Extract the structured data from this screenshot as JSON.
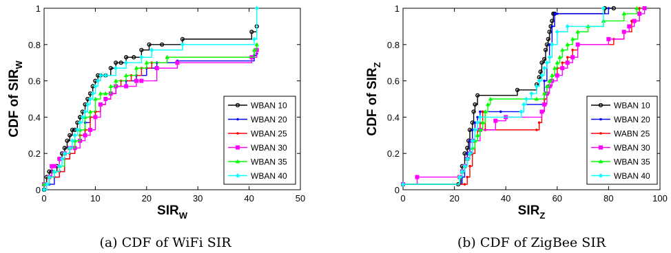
{
  "chart_data": [
    {
      "type": "line",
      "subplot_caption": "(a) CDF of WiFi SIR",
      "xlabel": "SIR",
      "xlabel_sub": "W",
      "ylabel": "CDF of SIR",
      "ylabel_sub": "W",
      "xlim": [
        0,
        50
      ],
      "ylim": [
        0,
        1
      ],
      "xticks": [
        "0",
        "10",
        "20",
        "30",
        "40",
        "50"
      ],
      "yticks": [
        "0",
        "0.2",
        "0.4",
        "0.6",
        "0.8",
        "1"
      ],
      "grid": false,
      "legend_position": "bottom-right",
      "series": [
        {
          "name": "WBAN 10",
          "color": "#000000",
          "marker": "circle",
          "x": [
            0,
            0.5,
            1,
            1.5,
            2.5,
            3,
            3.5,
            4,
            4.5,
            5,
            5.5,
            6,
            6.5,
            7,
            7.5,
            8,
            8.5,
            9,
            9.5,
            10,
            10.5,
            11,
            12,
            13,
            14,
            15,
            16,
            17.5,
            19,
            20.5,
            23,
            27,
            40.5,
            41.5
          ],
          "y": [
            0,
            0.07,
            0.1,
            0.1,
            0.13,
            0.17,
            0.2,
            0.23,
            0.27,
            0.3,
            0.33,
            0.33,
            0.37,
            0.4,
            0.43,
            0.47,
            0.5,
            0.53,
            0.57,
            0.6,
            0.63,
            0.63,
            0.63,
            0.67,
            0.7,
            0.7,
            0.73,
            0.73,
            0.77,
            0.8,
            0.8,
            0.83,
            0.87,
            0.9
          ]
        },
        {
          "name": "WBAN 20",
          "color": "#0000ff",
          "marker": "point",
          "x": [
            0,
            1,
            2,
            3,
            4,
            5,
            6,
            7,
            8,
            9,
            10,
            11,
            12,
            13,
            14,
            16,
            18,
            20,
            22,
            26,
            41,
            41.5
          ],
          "y": [
            0.03,
            0.03,
            0.07,
            0.1,
            0.17,
            0.2,
            0.27,
            0.3,
            0.37,
            0.4,
            0.43,
            0.47,
            0.5,
            0.53,
            0.57,
            0.6,
            0.63,
            0.67,
            0.7,
            0.71,
            0.74,
            0.75
          ]
        },
        {
          "name": "WBAN 25",
          "color": "#ff0000",
          "marker": "point",
          "x": [
            0,
            1,
            2,
            3,
            4,
            5,
            6,
            7,
            8,
            9,
            10,
            11,
            12,
            13,
            14,
            15,
            17,
            19,
            21,
            24,
            41,
            41.5
          ],
          "y": [
            0.03,
            0.07,
            0.07,
            0.1,
            0.17,
            0.2,
            0.27,
            0.3,
            0.33,
            0.4,
            0.43,
            0.47,
            0.5,
            0.53,
            0.57,
            0.6,
            0.63,
            0.67,
            0.7,
            0.73,
            0.77,
            0.8
          ]
        },
        {
          "name": "WBAN 30",
          "color": "#ff00ff",
          "marker": "square",
          "x": [
            0,
            1,
            1.5,
            2,
            3,
            4,
            5,
            6,
            7,
            8,
            9,
            10,
            11,
            12,
            13,
            14,
            16,
            18,
            19,
            22,
            26,
            40.5,
            41.5
          ],
          "y": [
            0.03,
            0.07,
            0.13,
            0.13,
            0.17,
            0.2,
            0.23,
            0.23,
            0.27,
            0.3,
            0.33,
            0.4,
            0.47,
            0.5,
            0.53,
            0.57,
            0.57,
            0.6,
            0.6,
            0.67,
            0.7,
            0.73,
            0.77
          ]
        },
        {
          "name": "WBAN 35",
          "color": "#00ff00",
          "marker": "triangle",
          "x": [
            0,
            1,
            2,
            3,
            4,
            5,
            6,
            7,
            8,
            9,
            10,
            11,
            12,
            13,
            14,
            16,
            18,
            20,
            24,
            41,
            41.5
          ],
          "y": [
            0.03,
            0.07,
            0.1,
            0.13,
            0.2,
            0.23,
            0.27,
            0.33,
            0.4,
            0.43,
            0.5,
            0.53,
            0.53,
            0.57,
            0.6,
            0.63,
            0.67,
            0.7,
            0.73,
            0.77,
            0.8
          ]
        },
        {
          "name": "WBAN 40",
          "color": "#00ffff",
          "marker": "diamond",
          "x": [
            0,
            0.5,
            1,
            2,
            3,
            3.5,
            4,
            5,
            5.5,
            6,
            6.5,
            7,
            7.5,
            8,
            8.5,
            9,
            9.5,
            10,
            10.5,
            11,
            12,
            14,
            16,
            19,
            21,
            27,
            41,
            41.5
          ],
          "y": [
            0,
            0.03,
            0.07,
            0.1,
            0.13,
            0.17,
            0.2,
            0.23,
            0.27,
            0.3,
            0.33,
            0.37,
            0.4,
            0.43,
            0.47,
            0.5,
            0.53,
            0.57,
            0.6,
            0.63,
            0.63,
            0.67,
            0.7,
            0.73,
            0.77,
            0.8,
            0.83,
            1.0
          ]
        }
      ]
    },
    {
      "type": "line",
      "subplot_caption": "(b) CDF of ZigBee SIR",
      "xlabel": "SIR",
      "xlabel_sub": "Z",
      "ylabel": "CDF of SIR",
      "ylabel_sub": "Z",
      "xlim": [
        0,
        100
      ],
      "ylim": [
        0,
        1
      ],
      "xticks": [
        "0",
        "20",
        "40",
        "60",
        "80",
        "100"
      ],
      "yticks": [
        "0",
        "0.2",
        "0.4",
        "0.6",
        "0.8",
        "1"
      ],
      "grid": false,
      "legend_position": "bottom-right",
      "series": [
        {
          "name": "WBAN 10",
          "color": "#000000",
          "marker": "circle",
          "x": [
            0,
            21.5,
            22.5,
            23,
            24,
            25,
            25.5,
            26,
            27,
            27.5,
            28,
            29,
            44.5,
            52,
            53,
            53.5,
            54,
            55,
            55.5,
            56,
            56.5,
            57,
            57.5,
            58,
            58.5,
            59,
            78.5,
            82
          ],
          "y": [
            0.03,
            0.03,
            0.07,
            0.13,
            0.2,
            0.23,
            0.27,
            0.33,
            0.37,
            0.43,
            0.47,
            0.52,
            0.55,
            0.58,
            0.62,
            0.65,
            0.7,
            0.72,
            0.77,
            0.8,
            0.83,
            0.87,
            0.9,
            0.93,
            0.97,
            0.97,
            1.0,
            1.0
          ]
        },
        {
          "name": "WBAN 20",
          "color": "#0000ff",
          "marker": "point",
          "x": [
            0,
            23,
            24,
            25,
            26,
            27,
            28,
            29,
            30,
            38,
            47,
            55,
            56,
            57,
            58,
            59,
            60,
            80
          ],
          "y": [
            0.03,
            0.07,
            0.13,
            0.2,
            0.27,
            0.33,
            0.37,
            0.4,
            0.43,
            0.43,
            0.47,
            0.6,
            0.7,
            0.8,
            0.9,
            0.97,
            0.97,
            1.0
          ]
        },
        {
          "name": "WABN 25",
          "color": "#ff0000",
          "marker": "point",
          "x": [
            0,
            24,
            25,
            26,
            27,
            28,
            29,
            30,
            31,
            32,
            52,
            53,
            54,
            55,
            56,
            57,
            58,
            60,
            62,
            64,
            66,
            68,
            82,
            86,
            89,
            92
          ],
          "y": [
            0.03,
            0.03,
            0.07,
            0.13,
            0.2,
            0.27,
            0.33,
            0.37,
            0.43,
            0.33,
            0.33,
            0.37,
            0.43,
            0.5,
            0.57,
            0.6,
            0.63,
            0.67,
            0.7,
            0.73,
            0.77,
            0.8,
            0.83,
            0.87,
            0.93,
            1.0
          ]
        },
        {
          "name": "WBAN 30",
          "color": "#ff00ff",
          "marker": "square",
          "x": [
            0,
            5.5,
            22,
            23,
            24,
            25,
            26,
            27,
            30,
            36,
            40,
            54,
            55,
            56,
            57,
            58,
            60,
            62,
            64,
            66,
            68,
            80,
            86,
            88,
            90,
            92,
            94
          ],
          "y": [
            0.03,
            0.07,
            0.07,
            0.1,
            0.13,
            0.17,
            0.2,
            0.27,
            0.33,
            0.38,
            0.4,
            0.43,
            0.47,
            0.53,
            0.57,
            0.6,
            0.63,
            0.67,
            0.7,
            0.73,
            0.8,
            0.83,
            0.87,
            0.9,
            0.93,
            0.97,
            1.0
          ]
        },
        {
          "name": "WBAN 35",
          "color": "#00ff00",
          "marker": "triangle",
          "x": [
            0,
            22,
            23,
            24,
            25,
            26,
            27,
            28,
            29,
            30,
            31,
            32,
            33,
            34,
            52,
            55,
            56,
            57,
            58,
            59,
            60,
            61,
            62,
            64,
            66,
            68,
            72,
            78,
            86,
            91
          ],
          "y": [
            0.03,
            0.07,
            0.1,
            0.13,
            0.17,
            0.2,
            0.23,
            0.27,
            0.3,
            0.33,
            0.37,
            0.43,
            0.47,
            0.5,
            0.5,
            0.53,
            0.57,
            0.6,
            0.63,
            0.67,
            0.7,
            0.73,
            0.77,
            0.8,
            0.83,
            0.87,
            0.9,
            0.93,
            0.97,
            1.0
          ]
        },
        {
          "name": "WBAN 40",
          "color": "#00ffff",
          "marker": "diamond",
          "x": [
            0,
            22,
            23,
            24,
            25,
            26,
            27,
            28,
            29,
            30,
            46,
            47,
            48,
            50,
            52,
            53,
            54,
            55,
            56,
            57,
            58,
            60,
            64,
            78
          ],
          "y": [
            0.03,
            0.07,
            0.1,
            0.13,
            0.17,
            0.2,
            0.27,
            0.33,
            0.37,
            0.4,
            0.43,
            0.47,
            0.5,
            0.53,
            0.57,
            0.6,
            0.63,
            0.67,
            0.7,
            0.73,
            0.8,
            0.87,
            0.9,
            1.0
          ]
        }
      ]
    }
  ]
}
